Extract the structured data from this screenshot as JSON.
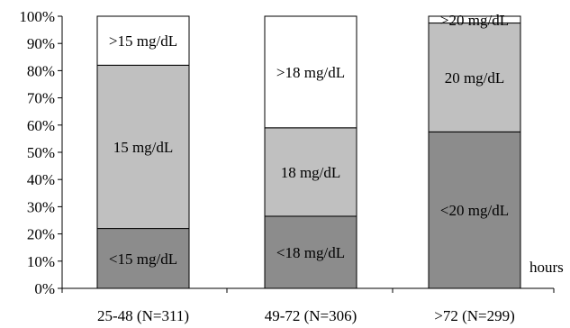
{
  "chart_data": {
    "type": "bar",
    "stacked": true,
    "title": "",
    "xlabel": "",
    "ylabel": "",
    "ylim": [
      0,
      100
    ],
    "y_ticks": [
      "0%",
      "10%",
      "20%",
      "30%",
      "40%",
      "50%",
      "60%",
      "70%",
      "80%",
      "90%",
      "100%"
    ],
    "x_unit_label": "hours",
    "grid": false,
    "legend": "none",
    "categories": [
      "25-48 (N=311)",
      "49-72 (N=306)",
      ">72 (N=299)"
    ],
    "bars": [
      {
        "segments": [
          {
            "label": "<15 mg/dL",
            "value": 22,
            "color": "#8c8c8c"
          },
          {
            "label": "15 mg/dL",
            "value": 60,
            "color": "#c0c0c0"
          },
          {
            "label": ">15 mg/dL",
            "value": 18,
            "color": "#ffffff"
          }
        ]
      },
      {
        "segments": [
          {
            "label": "<18 mg/dL",
            "value": 26.5,
            "color": "#8c8c8c"
          },
          {
            "label": "18 mg/dL",
            "value": 32.5,
            "color": "#c0c0c0"
          },
          {
            "label": ">18 mg/dL",
            "value": 41,
            "color": "#ffffff"
          }
        ]
      },
      {
        "segments": [
          {
            "label": "<20 mg/dL",
            "value": 57.5,
            "color": "#8c8c8c"
          },
          {
            "label": "20 mg/dL",
            "value": 40,
            "color": "#c0c0c0"
          },
          {
            "label": ">20 mg/dL",
            "value": 2.5,
            "color": "#ffffff"
          }
        ]
      }
    ]
  }
}
